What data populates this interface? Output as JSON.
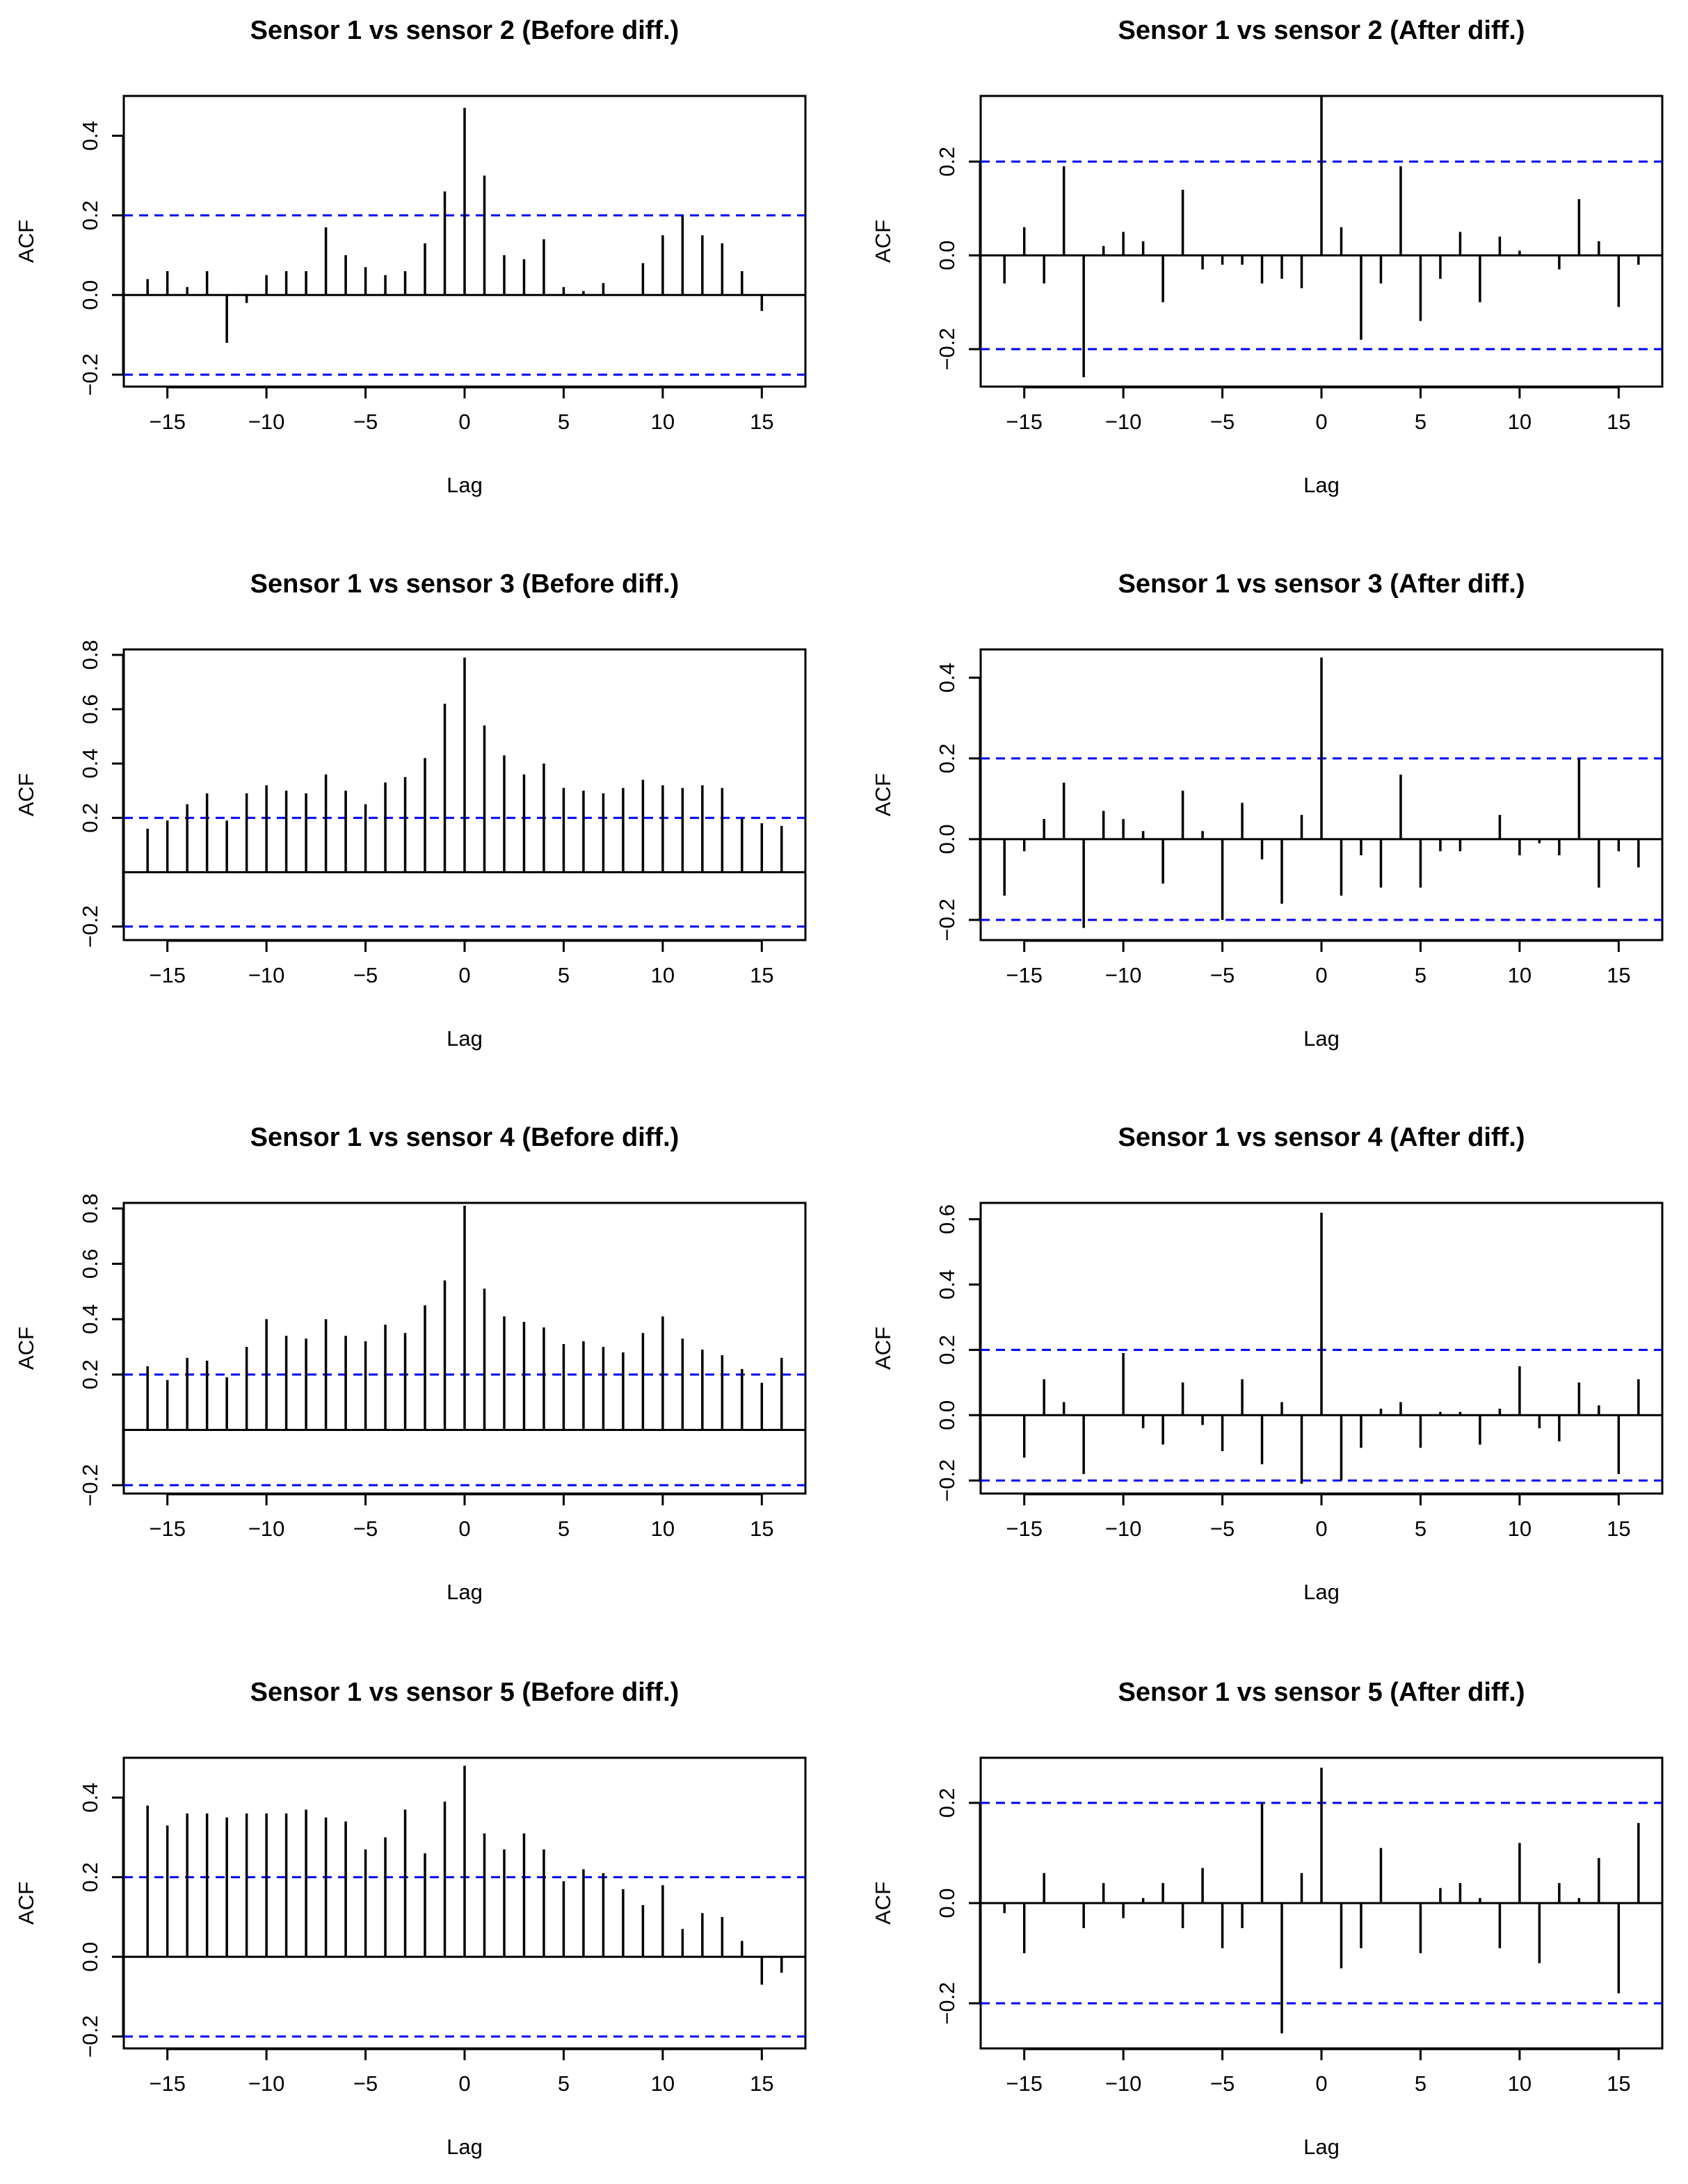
{
  "figure": {
    "background": "#ffffff",
    "bar_color": "#000000",
    "ci_color": "#0000ff"
  },
  "chart_data": [
    {
      "type": "bar",
      "title": "Sensor 1 vs sensor 2 (Before diff.)",
      "xlabel": "Lag",
      "ylabel": "ACF",
      "xlim": [
        -17.2,
        17.2
      ],
      "ylim": [
        -0.23,
        0.5
      ],
      "xticks": [
        -15,
        -10,
        -5,
        0,
        5,
        10,
        15
      ],
      "yticks": [
        -0.2,
        0.0,
        0.2,
        0.4
      ],
      "ytick_labels": [
        "−0.2",
        "0.0",
        "0.2",
        "0.4"
      ],
      "ci": 0.2,
      "lags": [
        -16,
        -15,
        -14,
        -13,
        -12,
        -11,
        -10,
        -9,
        -8,
        -7,
        -6,
        -5,
        -4,
        -3,
        -2,
        -1,
        0,
        1,
        2,
        3,
        4,
        5,
        6,
        7,
        8,
        9,
        10,
        11,
        12,
        13,
        14,
        15,
        16
      ],
      "values": [
        0.04,
        0.06,
        0.02,
        0.06,
        -0.12,
        -0.02,
        0.05,
        0.06,
        0.06,
        0.17,
        0.1,
        0.07,
        0.05,
        0.06,
        0.13,
        0.26,
        0.47,
        0.3,
        0.1,
        0.09,
        0.14,
        0.02,
        0.01,
        0.03,
        0.0,
        0.08,
        0.15,
        0.2,
        0.15,
        0.13,
        0.06,
        -0.04,
        0.0
      ]
    },
    {
      "type": "bar",
      "title": "Sensor 1 vs sensor 2 (After diff.)",
      "xlabel": "Lag",
      "ylabel": "ACF",
      "xlim": [
        -17.2,
        17.2
      ],
      "ylim": [
        -0.28,
        0.34
      ],
      "xticks": [
        -15,
        -10,
        -5,
        0,
        5,
        10,
        15
      ],
      "yticks": [
        -0.2,
        0.0,
        0.2
      ],
      "ytick_labels": [
        "−0.2",
        "0.0",
        "0.2"
      ],
      "ci": 0.2,
      "lags": [
        -16,
        -15,
        -14,
        -13,
        -12,
        -11,
        -10,
        -9,
        -8,
        -7,
        -6,
        -5,
        -4,
        -3,
        -2,
        -1,
        0,
        1,
        2,
        3,
        4,
        5,
        6,
        7,
        8,
        9,
        10,
        11,
        12,
        13,
        14,
        15,
        16
      ],
      "values": [
        -0.06,
        0.06,
        -0.06,
        0.19,
        -0.26,
        0.02,
        0.05,
        0.03,
        -0.1,
        0.14,
        -0.03,
        -0.02,
        -0.02,
        -0.06,
        -0.05,
        -0.07,
        0.34,
        0.06,
        -0.18,
        -0.06,
        0.19,
        -0.14,
        -0.05,
        0.05,
        -0.1,
        0.04,
        0.01,
        0.0,
        -0.03,
        0.12,
        0.03,
        -0.11,
        -0.02
      ]
    },
    {
      "type": "bar",
      "title": "Sensor 1 vs sensor 3 (Before diff.)",
      "xlabel": "Lag",
      "ylabel": "ACF",
      "xlim": [
        -17.2,
        17.2
      ],
      "ylim": [
        -0.25,
        0.82
      ],
      "xticks": [
        -15,
        -10,
        -5,
        0,
        5,
        10,
        15
      ],
      "yticks": [
        -0.2,
        0.2,
        0.4,
        0.6,
        0.8
      ],
      "ytick_labels": [
        "−0.2",
        "0.2",
        "0.4",
        "0.6",
        "0.8"
      ],
      "ci": 0.2,
      "lags": [
        -16,
        -15,
        -14,
        -13,
        -12,
        -11,
        -10,
        -9,
        -8,
        -7,
        -6,
        -5,
        -4,
        -3,
        -2,
        -1,
        0,
        1,
        2,
        3,
        4,
        5,
        6,
        7,
        8,
        9,
        10,
        11,
        12,
        13,
        14,
        15,
        16
      ],
      "values": [
        0.16,
        0.19,
        0.25,
        0.29,
        0.19,
        0.29,
        0.32,
        0.3,
        0.29,
        0.36,
        0.3,
        0.25,
        0.33,
        0.35,
        0.42,
        0.62,
        0.79,
        0.54,
        0.43,
        0.36,
        0.4,
        0.31,
        0.3,
        0.29,
        0.31,
        0.34,
        0.32,
        0.31,
        0.32,
        0.31,
        0.2,
        0.18,
        0.17
      ]
    },
    {
      "type": "bar",
      "title": "Sensor 1 vs sensor 3 (After diff.)",
      "xlabel": "Lag",
      "ylabel": "ACF",
      "xlim": [
        -17.2,
        17.2
      ],
      "ylim": [
        -0.25,
        0.47
      ],
      "xticks": [
        -15,
        -10,
        -5,
        0,
        5,
        10,
        15
      ],
      "yticks": [
        -0.2,
        0.0,
        0.2,
        0.4
      ],
      "ytick_labels": [
        "−0.2",
        "0.0",
        "0.2",
        "0.4"
      ],
      "ci": 0.2,
      "lags": [
        -16,
        -15,
        -14,
        -13,
        -12,
        -11,
        -10,
        -9,
        -8,
        -7,
        -6,
        -5,
        -4,
        -3,
        -2,
        -1,
        0,
        1,
        2,
        3,
        4,
        5,
        6,
        7,
        8,
        9,
        10,
        11,
        12,
        13,
        14,
        15,
        16
      ],
      "values": [
        -0.14,
        -0.03,
        0.05,
        0.14,
        -0.22,
        0.07,
        0.05,
        0.02,
        -0.11,
        0.12,
        0.02,
        -0.2,
        0.09,
        -0.05,
        -0.16,
        0.06,
        0.45,
        -0.14,
        -0.04,
        -0.12,
        0.16,
        -0.12,
        -0.03,
        -0.03,
        0.0,
        0.06,
        -0.04,
        -0.01,
        -0.04,
        0.2,
        -0.12,
        -0.03,
        -0.07
      ]
    },
    {
      "type": "bar",
      "title": "Sensor 1 vs sensor 4 (Before diff.)",
      "xlabel": "Lag",
      "ylabel": "ACF",
      "xlim": [
        -17.2,
        17.2
      ],
      "ylim": [
        -0.23,
        0.82
      ],
      "xticks": [
        -15,
        -10,
        -5,
        0,
        5,
        10,
        15
      ],
      "yticks": [
        -0.2,
        0.2,
        0.4,
        0.6,
        0.8
      ],
      "ytick_labels": [
        "−0.2",
        "0.2",
        "0.4",
        "0.6",
        "0.8"
      ],
      "ci": 0.2,
      "lags": [
        -16,
        -15,
        -14,
        -13,
        -12,
        -11,
        -10,
        -9,
        -8,
        -7,
        -6,
        -5,
        -4,
        -3,
        -2,
        -1,
        0,
        1,
        2,
        3,
        4,
        5,
        6,
        7,
        8,
        9,
        10,
        11,
        12,
        13,
        14,
        15,
        16
      ],
      "values": [
        0.23,
        0.18,
        0.26,
        0.25,
        0.19,
        0.3,
        0.4,
        0.34,
        0.33,
        0.4,
        0.34,
        0.32,
        0.38,
        0.35,
        0.45,
        0.54,
        0.81,
        0.51,
        0.41,
        0.39,
        0.37,
        0.31,
        0.32,
        0.3,
        0.28,
        0.35,
        0.41,
        0.33,
        0.29,
        0.27,
        0.22,
        0.17,
        0.26
      ]
    },
    {
      "type": "bar",
      "title": "Sensor 1 vs sensor 4 (After diff.)",
      "xlabel": "Lag",
      "ylabel": "ACF",
      "xlim": [
        -17.2,
        17.2
      ],
      "ylim": [
        -0.24,
        0.65
      ],
      "xticks": [
        -15,
        -10,
        -5,
        0,
        5,
        10,
        15
      ],
      "yticks": [
        -0.2,
        0.0,
        0.2,
        0.4,
        0.6
      ],
      "ytick_labels": [
        "−0.2",
        "0.0",
        "0.2",
        "0.4",
        "0.6"
      ],
      "ci": 0.2,
      "lags": [
        -16,
        -15,
        -14,
        -13,
        -12,
        -11,
        -10,
        -9,
        -8,
        -7,
        -6,
        -5,
        -4,
        -3,
        -2,
        -1,
        0,
        1,
        2,
        3,
        4,
        5,
        6,
        7,
        8,
        9,
        10,
        11,
        12,
        13,
        14,
        15,
        16
      ],
      "values": [
        0.0,
        -0.13,
        0.11,
        0.04,
        -0.18,
        0.0,
        0.19,
        -0.04,
        -0.09,
        0.1,
        -0.03,
        -0.11,
        0.11,
        -0.15,
        0.04,
        -0.21,
        0.62,
        -0.2,
        -0.1,
        0.02,
        0.04,
        -0.1,
        0.01,
        0.01,
        -0.09,
        0.02,
        0.15,
        -0.04,
        -0.08,
        0.1,
        0.03,
        -0.18,
        0.11
      ]
    },
    {
      "type": "bar",
      "title": "Sensor 1 vs sensor 5 (Before diff.)",
      "xlabel": "Lag",
      "ylabel": "ACF",
      "xlim": [
        -17.2,
        17.2
      ],
      "ylim": [
        -0.23,
        0.5
      ],
      "xticks": [
        -15,
        -10,
        -5,
        0,
        5,
        10,
        15
      ],
      "yticks": [
        -0.2,
        0.0,
        0.2,
        0.4
      ],
      "ytick_labels": [
        "−0.2",
        "0.0",
        "0.2",
        "0.4"
      ],
      "ci": 0.2,
      "lags": [
        -16,
        -15,
        -14,
        -13,
        -12,
        -11,
        -10,
        -9,
        -8,
        -7,
        -6,
        -5,
        -4,
        -3,
        -2,
        -1,
        0,
        1,
        2,
        3,
        4,
        5,
        6,
        7,
        8,
        9,
        10,
        11,
        12,
        13,
        14,
        15,
        16
      ],
      "values": [
        0.38,
        0.33,
        0.36,
        0.36,
        0.35,
        0.36,
        0.36,
        0.36,
        0.37,
        0.35,
        0.34,
        0.27,
        0.3,
        0.37,
        0.26,
        0.39,
        0.48,
        0.31,
        0.27,
        0.31,
        0.27,
        0.19,
        0.22,
        0.21,
        0.17,
        0.13,
        0.18,
        0.07,
        0.11,
        0.1,
        0.04,
        -0.07,
        -0.04
      ]
    },
    {
      "type": "bar",
      "title": "Sensor 1 vs sensor 5 (After diff.)",
      "xlabel": "Lag",
      "ylabel": "ACF",
      "xlim": [
        -17.2,
        17.2
      ],
      "ylim": [
        -0.29,
        0.29
      ],
      "xticks": [
        -15,
        -10,
        -5,
        0,
        5,
        10,
        15
      ],
      "yticks": [
        -0.2,
        0.0,
        0.2
      ],
      "ytick_labels": [
        "−0.2",
        "0.0",
        "0.2"
      ],
      "ci": 0.2,
      "lags": [
        -16,
        -15,
        -14,
        -13,
        -12,
        -11,
        -10,
        -9,
        -8,
        -7,
        -6,
        -5,
        -4,
        -3,
        -2,
        -1,
        0,
        1,
        2,
        3,
        4,
        5,
        6,
        7,
        8,
        9,
        10,
        11,
        12,
        13,
        14,
        15,
        16
      ],
      "values": [
        -0.02,
        -0.1,
        0.06,
        0.0,
        -0.05,
        0.04,
        -0.03,
        0.01,
        0.04,
        -0.05,
        0.07,
        -0.09,
        -0.05,
        0.2,
        -0.26,
        0.06,
        0.27,
        -0.13,
        -0.09,
        0.11,
        0.0,
        -0.1,
        0.03,
        0.04,
        0.01,
        -0.09,
        0.12,
        -0.12,
        0.04,
        0.01,
        0.09,
        -0.18,
        0.16
      ]
    }
  ]
}
